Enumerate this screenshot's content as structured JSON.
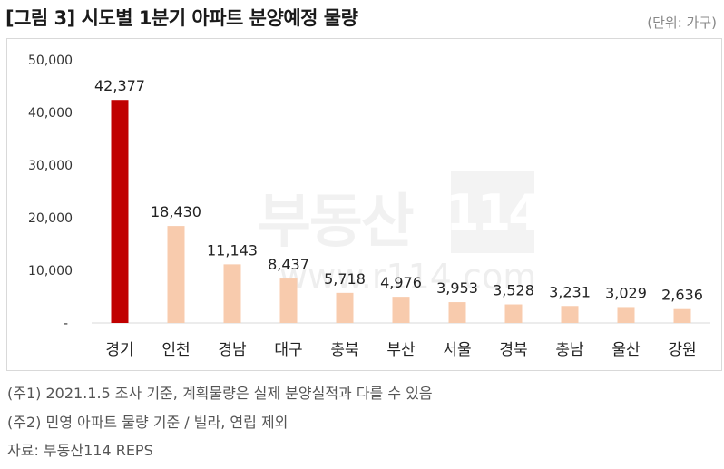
{
  "title": "[그림 3] 시도별 1분기 아파트 분양예정 물량",
  "unit": "(단위: 가구)",
  "watermark": {
    "brand": "부동산",
    "box": "114",
    "url": "www.r114.com"
  },
  "notes": [
    "(주1) 2021.1.5 조사 기준, 계획물량은 실제 분양실적과 다를 수 있음",
    "(주2) 민영 아파트 물량 기준 / 빌라, 연립 제외",
    "자료: 부동산114 REPS"
  ],
  "colors": {
    "highlight": "#c00000",
    "bar": "#f8cbad",
    "axis": "#d9d9d9"
  },
  "chart_data": {
    "type": "bar",
    "categories": [
      "경기",
      "인천",
      "경남",
      "대구",
      "충북",
      "부산",
      "서울",
      "경북",
      "충남",
      "울산",
      "강원"
    ],
    "values": [
      42377,
      18430,
      11143,
      8437,
      5718,
      4976,
      3953,
      3528,
      3231,
      3029,
      2636
    ],
    "value_labels": [
      "42,377",
      "18,430",
      "11,143",
      "8,437",
      "5,718",
      "4,976",
      "3,953",
      "3,528",
      "3,231",
      "3,029",
      "2,636"
    ],
    "yticks": [
      0,
      10000,
      20000,
      30000,
      40000,
      50000
    ],
    "ytick_labels": [
      "-",
      "10,000",
      "20,000",
      "30,000",
      "40,000",
      "50,000"
    ],
    "ylim": [
      0,
      50000
    ],
    "highlight_index": 0,
    "grid": false,
    "legend": "none"
  }
}
